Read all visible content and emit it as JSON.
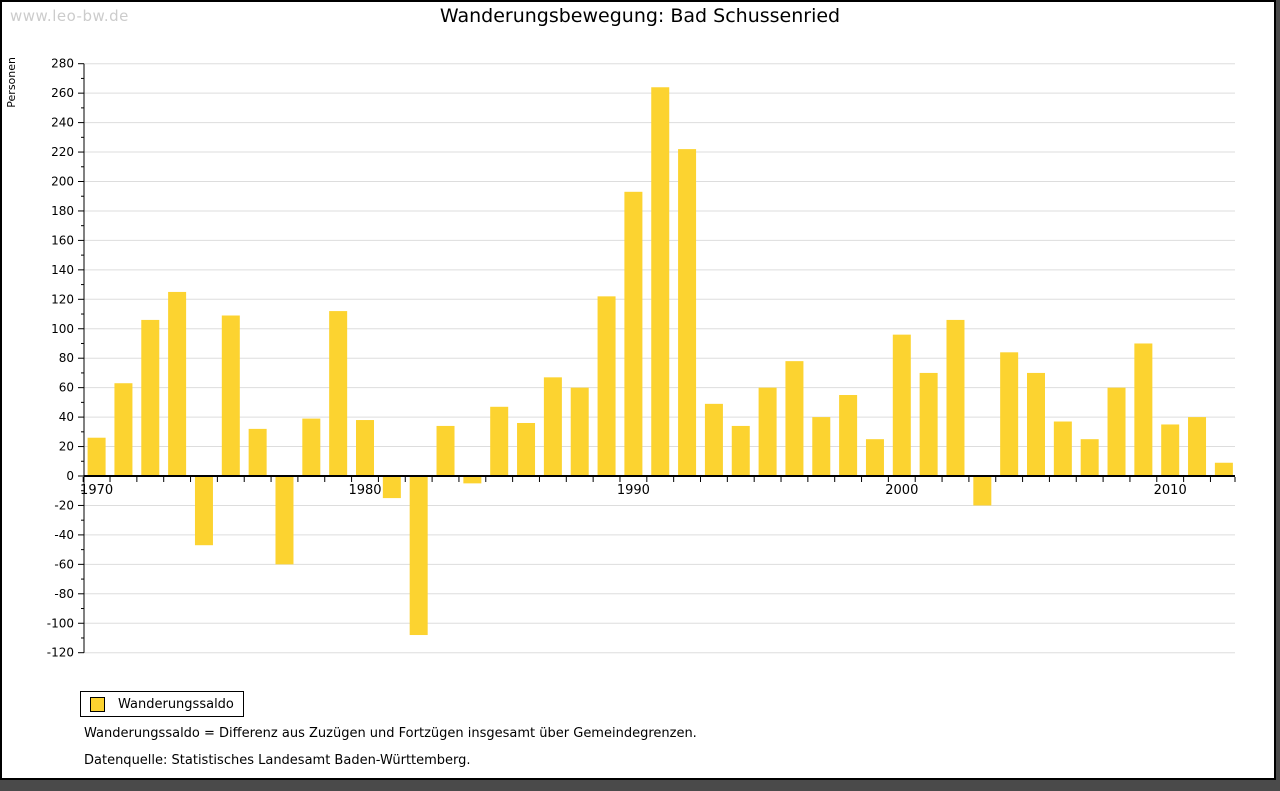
{
  "page": {
    "watermark": "www.leo-bw.de",
    "title": "Wanderungsbewegung: Bad Schussenried"
  },
  "chart_data": {
    "type": "bar",
    "title": "Wanderungsbewegung: Bad Schussenried",
    "xlabel": "",
    "ylabel": "Personen",
    "series_name": "Wanderungssaldo",
    "categories": [
      1970,
      1971,
      1972,
      1973,
      1974,
      1975,
      1976,
      1977,
      1978,
      1979,
      1980,
      1981,
      1982,
      1983,
      1984,
      1985,
      1986,
      1987,
      1988,
      1989,
      1990,
      1991,
      1992,
      1993,
      1994,
      1995,
      1996,
      1997,
      1998,
      1999,
      2000,
      2001,
      2002,
      2003,
      2004,
      2005,
      2006,
      2007,
      2008,
      2009,
      2010,
      2011,
      2012
    ],
    "values": [
      26,
      63,
      106,
      125,
      -47,
      109,
      32,
      -60,
      39,
      112,
      38,
      -15,
      -108,
      34,
      -5,
      47,
      36,
      67,
      60,
      122,
      193,
      264,
      222,
      49,
      34,
      60,
      78,
      40,
      55,
      25,
      96,
      70,
      106,
      -20,
      84,
      70,
      37,
      25,
      60,
      90,
      35,
      40,
      9
    ],
    "ylim": [
      -120,
      280
    ],
    "ytick_step": 20,
    "ytick_minor_step": 10,
    "x_decade_labels": [
      "1970",
      "1980",
      "1990",
      "2000",
      "2010"
    ],
    "grid": true,
    "legend_position": "bottom-left",
    "bar_color": "#FCD330",
    "grid_color": "#DDDDDD",
    "axis_color": "#000000",
    "watermark_color": "#CCCCCC"
  },
  "legend": {
    "label": "Wanderungssaldo"
  },
  "footnotes": {
    "definition": "Wanderungssaldo = Differenz aus Zuzügen und Fortzügen insgesamt über Gemeindegrenzen.",
    "source": "Datenquelle: Statistisches Landesamt Baden-Württemberg."
  }
}
